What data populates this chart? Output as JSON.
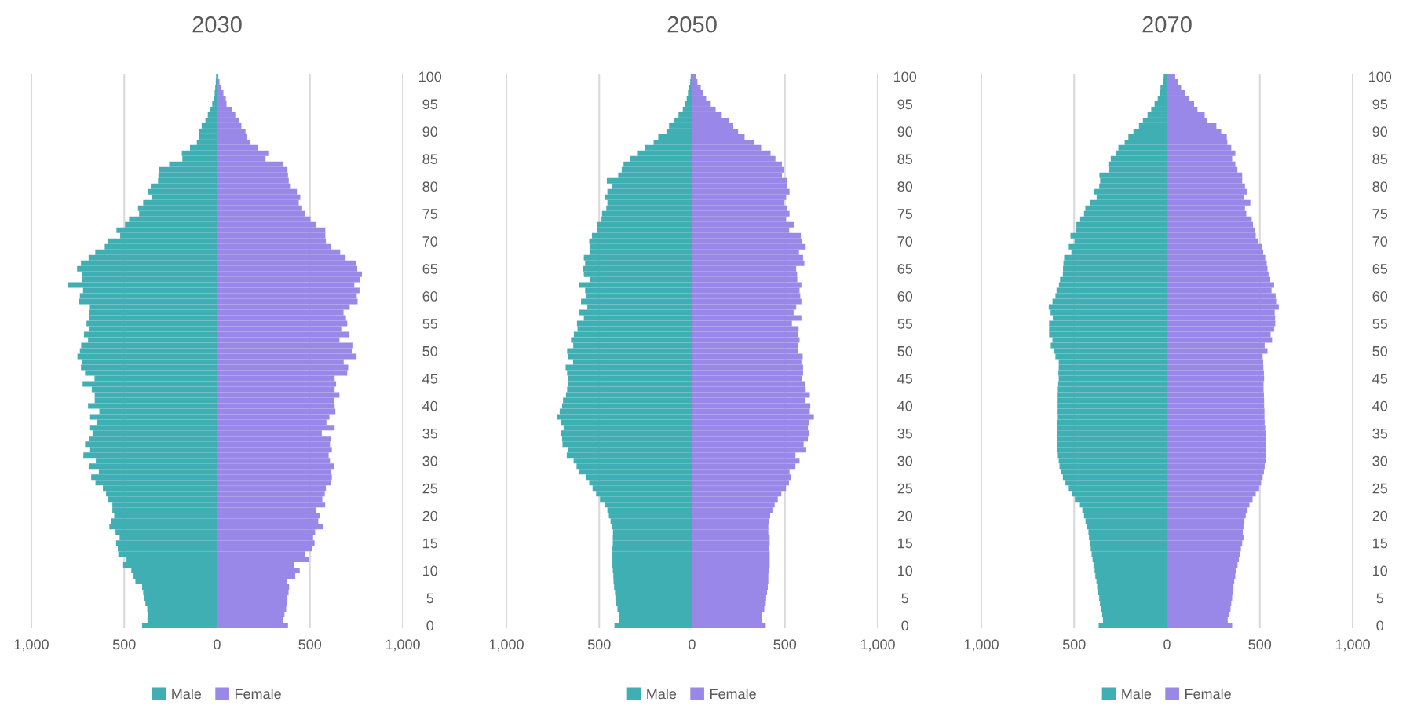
{
  "chart_data": [
    {
      "type": "bar",
      "orientation": "horizontal",
      "stacked": true,
      "title": "2030",
      "categories": [
        "100",
        null,
        null,
        null,
        null,
        "95",
        null,
        null,
        null,
        null,
        "90",
        null,
        null,
        null,
        null,
        "85",
        null,
        null,
        null,
        null,
        "80",
        null,
        null,
        null,
        null,
        "75",
        null,
        null,
        null,
        null,
        "70",
        null,
        null,
        null,
        null,
        "65",
        null,
        null,
        null,
        null,
        "60",
        null,
        null,
        null,
        null,
        "55",
        null,
        null,
        null,
        null,
        "50",
        null,
        null,
        null,
        null,
        "45",
        null,
        null,
        null,
        null,
        "40",
        null,
        null,
        null,
        null,
        "35",
        null,
        null,
        null,
        null,
        "30",
        null,
        null,
        null,
        null,
        "25",
        null,
        null,
        null,
        null,
        "20",
        null,
        null,
        null,
        null,
        "15",
        null,
        null,
        null,
        null,
        "10",
        null,
        null,
        null,
        null,
        "5",
        null,
        null,
        null,
        null,
        "0"
      ],
      "xlim": [
        -1000,
        1000
      ],
      "xticks": [
        {
          "value": -1000,
          "label": "1,000"
        },
        {
          "value": -500,
          "label": "500"
        },
        0,
        500,
        {
          "value": 1000,
          "label": "1,000"
        }
      ],
      "grid": "x",
      "legend": "bottom",
      "series": [
        {
          "name": "Male",
          "color": "#40afb3",
          "values": [
            -5,
            -7,
            -10,
            -13,
            -17,
            -26,
            -39,
            -50,
            -63,
            -83,
            -98,
            -98,
            -109,
            -146,
            -190,
            -187,
            -258,
            -313,
            -316,
            -318,
            -357,
            -372,
            -350,
            -398,
            -426,
            -420,
            -474,
            -496,
            -542,
            -522,
            -590,
            -605,
            -656,
            -692,
            -733,
            -754,
            -729,
            -725,
            -802,
            -722,
            -739,
            -746,
            -685,
            -688,
            -691,
            -703,
            -687,
            -717,
            -695,
            -732,
            -739,
            -752,
            -726,
            -733,
            -711,
            -660,
            -724,
            -675,
            -659,
            -659,
            -695,
            -634,
            -684,
            -646,
            -684,
            -671,
            -690,
            -711,
            -684,
            -720,
            -653,
            -690,
            -637,
            -678,
            -655,
            -615,
            -598,
            -586,
            -564,
            -564,
            -554,
            -569,
            -580,
            -547,
            -525,
            -544,
            -535,
            -532,
            -488,
            -506,
            -462,
            -450,
            -440,
            -404,
            -398,
            -391,
            -386,
            -376,
            -372,
            -375,
            -404
          ]
        },
        {
          "name": "Female",
          "color": "#9a88e8",
          "values": [
            7,
            13,
            20,
            34,
            47,
            51,
            80,
            98,
            117,
            131,
            153,
            162,
            178,
            222,
            280,
            261,
            353,
            379,
            382,
            386,
            397,
            430,
            448,
            440,
            458,
            472,
            503,
            535,
            583,
            583,
            586,
            612,
            663,
            692,
            749,
            755,
            780,
            771,
            739,
            767,
            752,
            757,
            714,
            681,
            694,
            701,
            669,
            713,
            659,
            733,
            729,
            751,
            682,
            706,
            701,
            633,
            641,
            633,
            659,
            630,
            633,
            637,
            605,
            589,
            633,
            564,
            615,
            608,
            618,
            601,
            608,
            630,
            615,
            618,
            612,
            586,
            580,
            567,
            582,
            531,
            555,
            545,
            571,
            528,
            517,
            525,
            513,
            474,
            496,
            415,
            445,
            421,
            378,
            388,
            385,
            379,
            375,
            372,
            363,
            356,
            382
          ]
        }
      ]
    },
    {
      "type": "bar",
      "orientation": "horizontal",
      "stacked": true,
      "title": "2050",
      "categories": [
        "100",
        null,
        null,
        null,
        null,
        "95",
        null,
        null,
        null,
        null,
        "90",
        null,
        null,
        null,
        null,
        "85",
        null,
        null,
        null,
        null,
        "80",
        null,
        null,
        null,
        null,
        "75",
        null,
        null,
        null,
        null,
        "70",
        null,
        null,
        null,
        null,
        "65",
        null,
        null,
        null,
        null,
        "60",
        null,
        null,
        null,
        null,
        "55",
        null,
        null,
        null,
        null,
        "50",
        null,
        null,
        null,
        null,
        "45",
        null,
        null,
        null,
        null,
        "40",
        null,
        null,
        null,
        null,
        "35",
        null,
        null,
        null,
        null,
        "30",
        null,
        null,
        null,
        null,
        "25",
        null,
        null,
        null,
        null,
        "20",
        null,
        null,
        null,
        null,
        "15",
        null,
        null,
        null,
        null,
        "10",
        null,
        null,
        null,
        null,
        "5",
        null,
        null,
        null,
        null,
        "0"
      ],
      "xlim": [
        -1000,
        1000
      ],
      "xticks": [
        {
          "value": -1000,
          "label": "1,000"
        },
        {
          "value": -500,
          "label": "500"
        },
        0,
        500,
        {
          "value": 1000,
          "label": "1,000"
        }
      ],
      "grid": "x",
      "legend": "bottom",
      "series": [
        {
          "name": "Male",
          "color": "#40afb3",
          "values": [
            -7,
            -10,
            -15,
            -22,
            -29,
            -39,
            -50,
            -73,
            -95,
            -124,
            -138,
            -182,
            -207,
            -252,
            -292,
            -335,
            -369,
            -379,
            -398,
            -459,
            -430,
            -456,
            -471,
            -456,
            -462,
            -485,
            -488,
            -510,
            -513,
            -539,
            -554,
            -552,
            -552,
            -583,
            -576,
            -589,
            -583,
            -552,
            -609,
            -576,
            -569,
            -598,
            -564,
            -608,
            -583,
            -620,
            -617,
            -637,
            -652,
            -640,
            -673,
            -666,
            -641,
            -681,
            -673,
            -666,
            -666,
            -673,
            -679,
            -695,
            -700,
            -713,
            -729,
            -707,
            -692,
            -704,
            -700,
            -698,
            -668,
            -675,
            -638,
            -622,
            -611,
            -573,
            -554,
            -536,
            -517,
            -496,
            -471,
            -456,
            -448,
            -439,
            -430,
            -426,
            -427,
            -427,
            -429,
            -429,
            -429,
            -429,
            -427,
            -424,
            -423,
            -420,
            -415,
            -413,
            -408,
            -402,
            -395,
            -392,
            -418
          ]
        },
        {
          "name": "Female",
          "color": "#9a88e8",
          "values": [
            20,
            29,
            47,
            58,
            76,
            101,
            127,
            160,
            198,
            222,
            248,
            283,
            334,
            372,
            423,
            449,
            484,
            493,
            484,
            513,
            513,
            525,
            507,
            496,
            513,
            525,
            507,
            550,
            523,
            586,
            593,
            612,
            576,
            598,
            605,
            561,
            566,
            567,
            589,
            579,
            583,
            589,
            561,
            547,
            589,
            538,
            574,
            571,
            579,
            569,
            571,
            596,
            589,
            598,
            598,
            593,
            608,
            612,
            634,
            608,
            637,
            634,
            656,
            630,
            624,
            628,
            624,
            601,
            615,
            557,
            579,
            557,
            525,
            531,
            522,
            506,
            481,
            462,
            445,
            433,
            421,
            415,
            411,
            411,
            418,
            418,
            415,
            418,
            418,
            418,
            415,
            411,
            411,
            408,
            404,
            399,
            397,
            389,
            375,
            375,
            397
          ]
        }
      ]
    },
    {
      "type": "bar",
      "orientation": "horizontal",
      "stacked": true,
      "title": "2070",
      "categories": [
        "100",
        null,
        null,
        null,
        null,
        "95",
        null,
        null,
        null,
        null,
        "90",
        null,
        null,
        null,
        null,
        "85",
        null,
        null,
        null,
        null,
        "80",
        null,
        null,
        null,
        null,
        "75",
        null,
        null,
        null,
        null,
        "70",
        null,
        null,
        null,
        null,
        "65",
        null,
        null,
        null,
        null,
        "60",
        null,
        null,
        null,
        null,
        "55",
        null,
        null,
        null,
        null,
        "50",
        null,
        null,
        null,
        null,
        "45",
        null,
        null,
        null,
        null,
        "40",
        null,
        null,
        null,
        null,
        "35",
        null,
        null,
        null,
        null,
        "30",
        null,
        null,
        null,
        null,
        "25",
        null,
        null,
        null,
        null,
        "20",
        null,
        null,
        null,
        null,
        "15",
        null,
        null,
        null,
        null,
        "10",
        null,
        null,
        null,
        null,
        "5",
        null,
        null,
        null,
        null,
        "0"
      ],
      "xlim": [
        -1000,
        1000
      ],
      "xticks": [
        {
          "value": -1000,
          "label": "1,000"
        },
        {
          "value": -500,
          "label": "500"
        },
        0,
        500,
        {
          "value": 1000,
          "label": "1,000"
        }
      ],
      "grid": "x",
      "legend": "bottom",
      "series": [
        {
          "name": "Male",
          "color": "#40afb3",
          "values": [
            -18,
            -23,
            -35,
            -38,
            -50,
            -67,
            -85,
            -105,
            -130,
            -151,
            -181,
            -208,
            -228,
            -262,
            -275,
            -303,
            -316,
            -313,
            -364,
            -360,
            -365,
            -392,
            -379,
            -415,
            -440,
            -447,
            -468,
            -488,
            -491,
            -520,
            -498,
            -529,
            -515,
            -554,
            -558,
            -560,
            -561,
            -576,
            -582,
            -595,
            -601,
            -617,
            -637,
            -627,
            -615,
            -635,
            -635,
            -635,
            -617,
            -626,
            -607,
            -601,
            -583,
            -583,
            -585,
            -583,
            -586,
            -588,
            -589,
            -589,
            -589,
            -589,
            -588,
            -591,
            -591,
            -591,
            -592,
            -592,
            -591,
            -588,
            -583,
            -579,
            -572,
            -561,
            -547,
            -529,
            -513,
            -496,
            -469,
            -456,
            -447,
            -439,
            -430,
            -423,
            -420,
            -415,
            -411,
            -406,
            -401,
            -396,
            -390,
            -386,
            -380,
            -376,
            -371,
            -365,
            -361,
            -355,
            -349,
            -345,
            -368
          ]
        },
        {
          "name": "Female",
          "color": "#9a88e8",
          "values": [
            44,
            60,
            76,
            95,
            118,
            146,
            164,
            203,
            216,
            266,
            292,
            322,
            325,
            346,
            368,
            351,
            368,
            379,
            405,
            405,
            420,
            430,
            415,
            449,
            420,
            427,
            456,
            463,
            475,
            478,
            490,
            512,
            518,
            529,
            537,
            541,
            547,
            556,
            577,
            563,
            585,
            588,
            602,
            580,
            582,
            583,
            577,
            558,
            566,
            526,
            541,
            515,
            518,
            519,
            522,
            523,
            520,
            520,
            522,
            523,
            523,
            525,
            525,
            526,
            529,
            531,
            532,
            534,
            534,
            534,
            531,
            526,
            522,
            515,
            507,
            496,
            478,
            461,
            444,
            434,
            424,
            417,
            412,
            408,
            412,
            405,
            398,
            393,
            387,
            380,
            374,
            368,
            362,
            358,
            354,
            351,
            346,
            342,
            333,
            327,
            351
          ]
        }
      ]
    }
  ]
}
